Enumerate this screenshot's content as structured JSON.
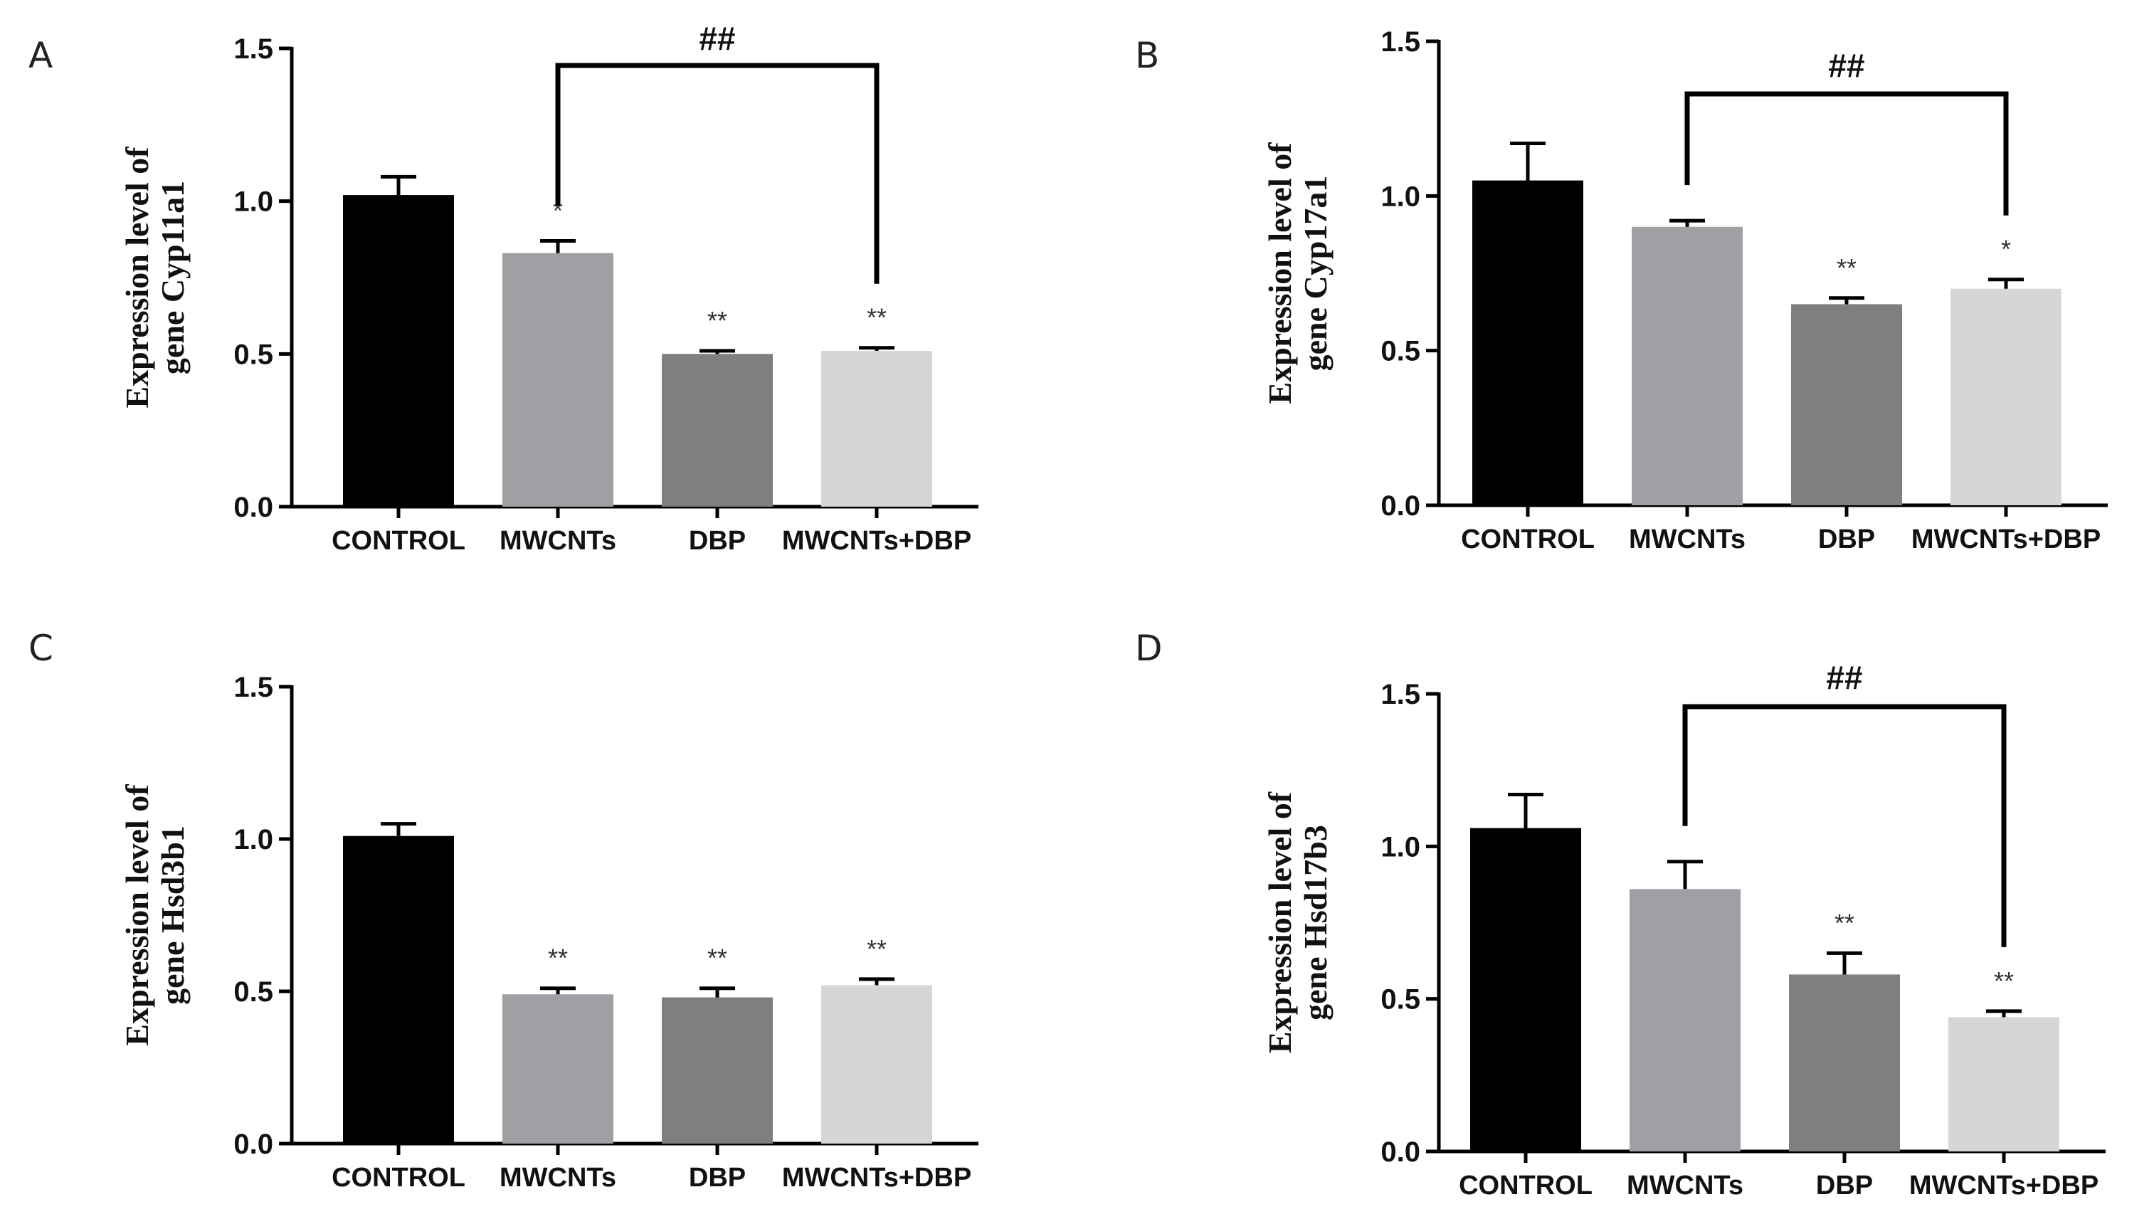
{
  "chart_data": [
    {
      "type": "bar",
      "panel": "A",
      "title": "",
      "xlabel": "",
      "ylabel": "Expression level of gene Cyp11a1",
      "ylabel_lines": [
        "Expression level of",
        "gene Cyp11a1"
      ],
      "categories": [
        "CONTROL",
        "MWCNTs",
        "DBP",
        "MWCNTs+DBP"
      ],
      "values": [
        1.02,
        0.83,
        0.5,
        0.51
      ],
      "errors": [
        0.06,
        0.04,
        0.01,
        0.01
      ],
      "significance": [
        "",
        "*",
        "**",
        "**"
      ],
      "bracket": {
        "from": 1,
        "to": 3,
        "label": "##"
      },
      "ylim": [
        0,
        1.5
      ],
      "yticks": [
        "0.0",
        "0.5",
        "1.0",
        "1.5"
      ],
      "colors": [
        "#000000",
        "#a0a0a4",
        "#7f7f7f",
        "#d6d6d6"
      ]
    },
    {
      "type": "bar",
      "panel": "B",
      "title": "",
      "xlabel": "",
      "ylabel": "Expression level of gene Cyp17a1",
      "ylabel_lines": [
        "Expression level of",
        "gene Cyp17a1"
      ],
      "categories": [
        "CONTROL",
        "MWCNTs",
        "DBP",
        "MWCNTs+DBP"
      ],
      "values": [
        1.05,
        0.9,
        0.65,
        0.7
      ],
      "errors": [
        0.12,
        0.02,
        0.02,
        0.03
      ],
      "significance": [
        "",
        "",
        "**",
        "*"
      ],
      "bracket": {
        "from": 1,
        "to": 3,
        "label": "##"
      },
      "ylim": [
        0,
        1.5
      ],
      "yticks": [
        "0.0",
        "0.5",
        "1.0",
        "1.5"
      ],
      "colors": [
        "#000000",
        "#a0a0a4",
        "#7f7f7f",
        "#d6d6d6"
      ]
    },
    {
      "type": "bar",
      "panel": "C",
      "title": "",
      "xlabel": "",
      "ylabel": "Expression level of gene Hsd3b1",
      "ylabel_lines": [
        "Expression level of",
        "gene Hsd3b1"
      ],
      "categories": [
        "CONTROL",
        "MWCNTs",
        "DBP",
        "MWCNTs+DBP"
      ],
      "values": [
        1.01,
        0.49,
        0.48,
        0.52
      ],
      "errors": [
        0.04,
        0.02,
        0.03,
        0.02
      ],
      "significance": [
        "",
        "**",
        "**",
        "**"
      ],
      "bracket": null,
      "ylim": [
        0,
        1.5
      ],
      "yticks": [
        "0.0",
        "0.5",
        "1.0",
        "1.5"
      ],
      "colors": [
        "#000000",
        "#a0a0a4",
        "#7f7f7f",
        "#d6d6d6"
      ]
    },
    {
      "type": "bar",
      "panel": "D",
      "title": "",
      "xlabel": "",
      "ylabel": "Expression level of gene Hsd17b3",
      "ylabel_lines": [
        "Expression level of",
        "gene Hsd17b3"
      ],
      "categories": [
        "CONTROL",
        "MWCNTs",
        "DBP",
        "MWCNTs+DBP"
      ],
      "values": [
        1.06,
        0.86,
        0.58,
        0.44
      ],
      "errors": [
        0.11,
        0.09,
        0.07,
        0.02
      ],
      "significance": [
        "",
        "",
        "**",
        "**"
      ],
      "bracket": {
        "from": 1,
        "to": 3,
        "label": "##"
      },
      "ylim": [
        0,
        1.5
      ],
      "yticks": [
        "0.0",
        "0.5",
        "1.0",
        "1.5"
      ],
      "colors": [
        "#000000",
        "#a0a0a4",
        "#7f7f7f",
        "#d6d6d6"
      ]
    }
  ]
}
